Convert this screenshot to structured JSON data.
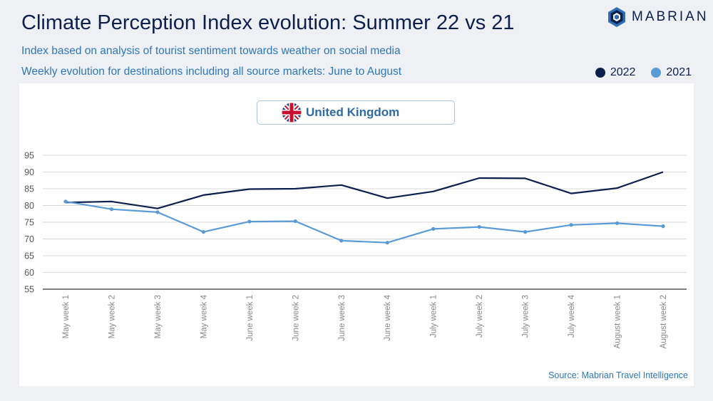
{
  "header": {
    "title": "Climate Perception Index evolution: Summer 22 vs 21",
    "subtitle_1": "Index based on analysis of tourist sentiment towards weather on social media",
    "subtitle_2": "Weekly evolution for destinations including all source markets: June to August"
  },
  "logo": {
    "text": "MABRIAN",
    "icon": "mabrian-hexagon-logo"
  },
  "country": {
    "label": "United Kingdom",
    "icon": "uk-flag-icon"
  },
  "source": "Source: Mabrian Travel Intelligence",
  "colors": {
    "series_2022": "#0c1f4d",
    "series_2021": "#5b9bd5",
    "grid": "#d9d9d9",
    "axis": "#333333"
  },
  "chart_data": {
    "type": "line",
    "title": "Climate Perception Index evolution: Summer 22 vs 21",
    "xlabel": "",
    "ylabel": "",
    "ylim": [
      55,
      95
    ],
    "yticks": [
      55,
      60,
      65,
      70,
      75,
      80,
      85,
      90,
      95
    ],
    "grid": true,
    "legend_position": "top-right",
    "categories": [
      "May week 1",
      "May week 2",
      "May week 3",
      "May week 4",
      "June week 1",
      "June week 2",
      "June week 3",
      "June week 4",
      "July week 1",
      "July week 2",
      "July week 3",
      "July week 4",
      "August week 1",
      "August week 2"
    ],
    "series": [
      {
        "name": "2022",
        "values": [
          80.9,
          81.2,
          79.1,
          83.1,
          84.9,
          85.0,
          86.1,
          82.2,
          84.2,
          88.2,
          88.1,
          83.6,
          85.2,
          90.0
        ]
      },
      {
        "name": "2021",
        "values": [
          81.2,
          78.9,
          78.0,
          72.1,
          75.2,
          75.3,
          69.5,
          68.9,
          73.0,
          73.6,
          72.1,
          74.2,
          74.7,
          73.8
        ]
      }
    ]
  }
}
